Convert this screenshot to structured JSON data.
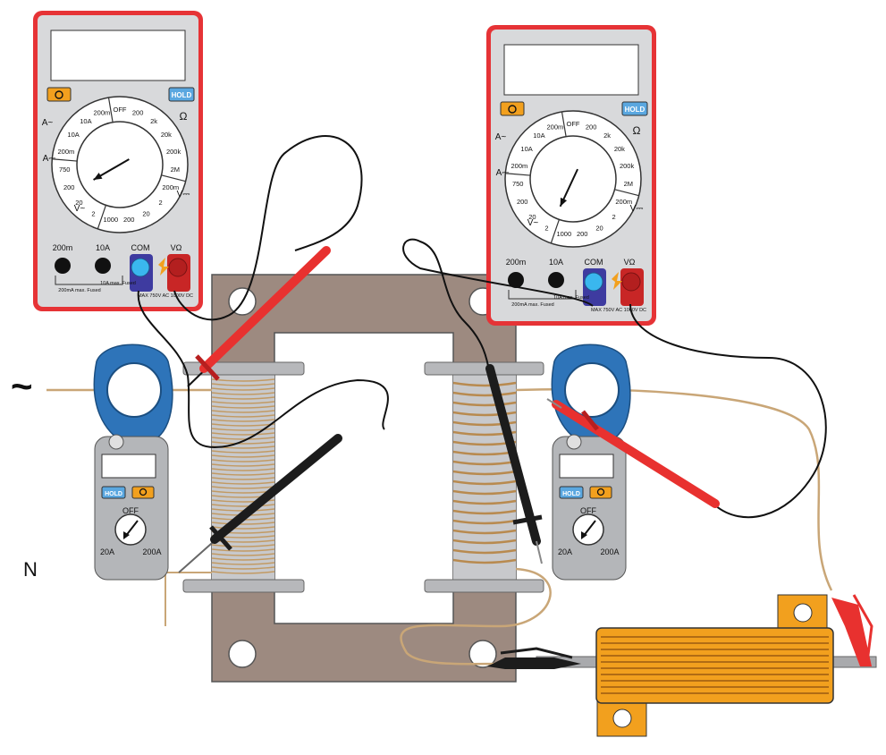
{
  "labels": {
    "ac_symbol": "~",
    "neutral": "N"
  },
  "multimeter": {
    "power_icon": "power-icon",
    "hold": "HOLD",
    "dial_left": [
      "A~",
      "A⎓",
      "V~"
    ],
    "dial_right": [
      "Ω",
      "V⎓"
    ],
    "dial_positions": [
      "OFF",
      "200",
      "2k",
      "20k",
      "200k",
      "2M",
      "200m",
      "2",
      "20",
      "200",
      "1000",
      "2",
      "20",
      "200",
      "750",
      "200m",
      "10A",
      "10A",
      "200m"
    ],
    "jacks": [
      "200m",
      "10A",
      "COM",
      "VΩ"
    ],
    "fuse_notes": [
      "200mA max. Fused",
      "10A max. Fused",
      "MAX 750V AC 1000V DC"
    ]
  },
  "clamp_meter": {
    "hold": "HOLD",
    "dial": [
      "OFF",
      "20A",
      "200A"
    ]
  },
  "colors": {
    "meter_border": "#e63336",
    "meter_body": "#d8d9db",
    "core": "#9d8a80",
    "coil": "#d6b07c",
    "wire": "#c9a677",
    "clamp": "#2e74b9",
    "resistor": "#f2a01e",
    "probe_red": "#e8312f",
    "probe_black": "#1c1c1c",
    "jack_com": "#3ab7ee",
    "jack_v": "#e8312f"
  }
}
